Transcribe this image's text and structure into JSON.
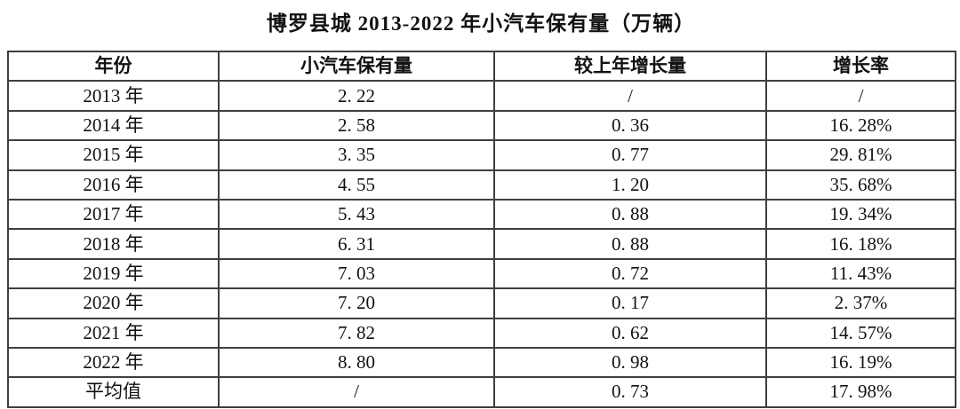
{
  "page": {
    "background_color": "#ffffff",
    "text_color": "#111111",
    "border_color": "#3f3f3f"
  },
  "chart_data": {
    "type": "table",
    "title": "博罗县城 2013-2022 年小汽车保有量（万辆）",
    "columns": [
      "年份",
      "小汽车保有量",
      "较上年增长量",
      "增长率"
    ],
    "unit": "万辆",
    "years": [
      2013,
      2014,
      2015,
      2016,
      2017,
      2018,
      2019,
      2020,
      2021,
      2022
    ],
    "ownership": [
      2.22,
      2.58,
      3.35,
      4.55,
      5.43,
      6.31,
      7.03,
      7.2,
      7.82,
      8.8
    ],
    "growth_over_prev_year": [
      null,
      0.36,
      0.77,
      1.2,
      0.88,
      0.88,
      0.72,
      0.17,
      0.62,
      0.98
    ],
    "growth_rate_percent": [
      null,
      16.28,
      29.81,
      35.68,
      19.34,
      16.18,
      11.43,
      2.37,
      14.57,
      16.19
    ],
    "average_row": {
      "label": "平均值",
      "ownership": null,
      "growth": 0.73,
      "rate_percent": 17.98
    }
  },
  "table": {
    "columns": [
      "年份",
      "小汽车保有量",
      "较上年增长量",
      "增长率"
    ],
    "rows": [
      [
        "2013 年",
        "2. 22",
        "/",
        "/"
      ],
      [
        "2014 年",
        "2. 58",
        "0. 36",
        "16. 28%"
      ],
      [
        "2015 年",
        "3. 35",
        "0. 77",
        "29. 81%"
      ],
      [
        "2016 年",
        "4. 55",
        "1. 20",
        "35. 68%"
      ],
      [
        "2017 年",
        "5. 43",
        "0. 88",
        "19. 34%"
      ],
      [
        "2018 年",
        "6. 31",
        "0. 88",
        "16. 18%"
      ],
      [
        "2019 年",
        "7. 03",
        "0. 72",
        "11. 43%"
      ],
      [
        "2020 年",
        "7. 20",
        "0. 17",
        "2. 37%"
      ],
      [
        "2021 年",
        "7. 82",
        "0. 62",
        "14. 57%"
      ],
      [
        "2022 年",
        "8. 80",
        "0. 98",
        "16. 19%"
      ],
      [
        "平均值",
        "/",
        "0. 73",
        "17. 98%"
      ]
    ]
  }
}
